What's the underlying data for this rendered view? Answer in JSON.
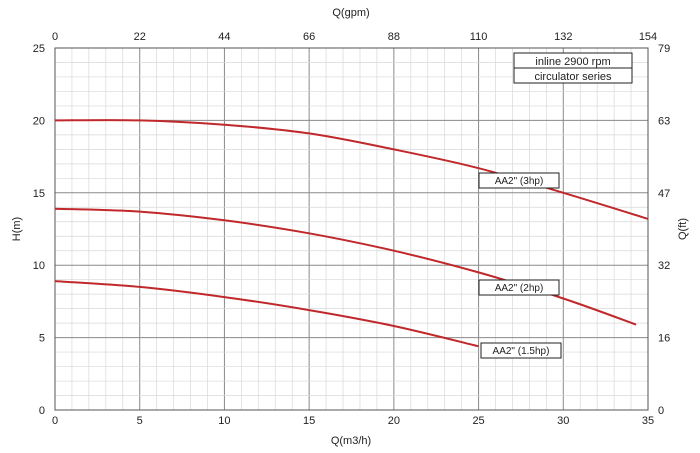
{
  "chart_data": {
    "type": "line",
    "title_box": [
      "inline 2900 rpm",
      "circulator series"
    ],
    "xlabel": "Q(m3/h)",
    "ylabel": "H(m)",
    "x2label": "Q(gpm)",
    "y2label": "Q(ft)",
    "xlim": [
      0,
      35
    ],
    "ylim": [
      0,
      25
    ],
    "x_ticks": [
      "0",
      "5",
      "10",
      "15",
      "20",
      "25",
      "30",
      "35"
    ],
    "y_ticks": [
      "0",
      "5",
      "10",
      "15",
      "20",
      "25"
    ],
    "x2_ticks": [
      "0",
      "22",
      "44",
      "66",
      "88",
      "110",
      "132",
      "154"
    ],
    "y2_ticks": [
      "0",
      "16",
      "32",
      "47",
      "63",
      "79"
    ],
    "grid": true,
    "line_color": "#c0282b",
    "series": [
      {
        "name": "AA2\" (3hp)",
        "x": [
          0,
          5,
          10,
          15,
          20,
          25,
          30,
          35
        ],
        "y": [
          20.0,
          20.0,
          19.7,
          19.1,
          18.0,
          16.7,
          15.0,
          13.2
        ]
      },
      {
        "name": "AA2\" (2hp)",
        "x": [
          0,
          5,
          10,
          15,
          20,
          25,
          30,
          34.3
        ],
        "y": [
          13.9,
          13.7,
          13.1,
          12.2,
          11.0,
          9.5,
          7.7,
          5.9
        ]
      },
      {
        "name": "AA2\" (1.5hp)",
        "x": [
          0,
          5,
          10,
          15,
          20,
          25
        ],
        "y": [
          8.9,
          8.5,
          7.8,
          6.9,
          5.8,
          4.4
        ]
      }
    ]
  }
}
